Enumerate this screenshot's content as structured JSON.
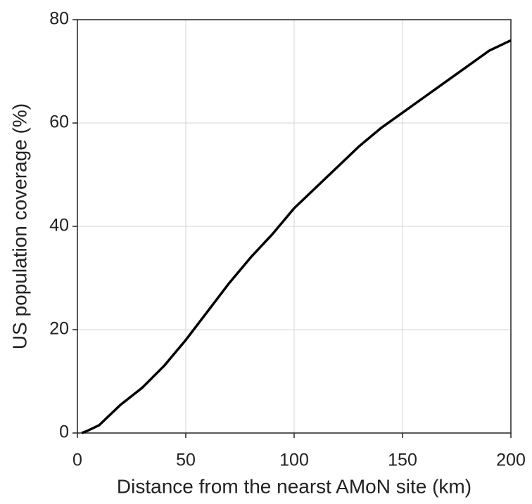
{
  "chart_data": {
    "type": "line",
    "x_label": "Distance from the nearst AMoN site (km)",
    "y_label": "US population coverage (%)",
    "xlim": [
      0,
      200
    ],
    "xticks": [
      0,
      50,
      100,
      150,
      200
    ],
    "ylim": [
      0,
      80
    ],
    "yticks": [
      0,
      20,
      40,
      60,
      80
    ],
    "grid": true,
    "x": [
      2,
      5,
      10,
      15,
      20,
      30,
      40,
      50,
      60,
      70,
      80,
      90,
      100,
      110,
      120,
      130,
      140,
      150,
      160,
      170,
      180,
      190,
      200
    ],
    "series": [
      {
        "color": "#000000",
        "values": [
          0,
          0.5,
          1.5,
          3.5,
          5.5,
          8.8,
          13,
          18,
          23.5,
          29,
          34,
          38.5,
          43.5,
          47.5,
          51.5,
          55.5,
          59,
          62,
          65,
          68,
          71,
          74,
          76
        ]
      }
    ]
  }
}
